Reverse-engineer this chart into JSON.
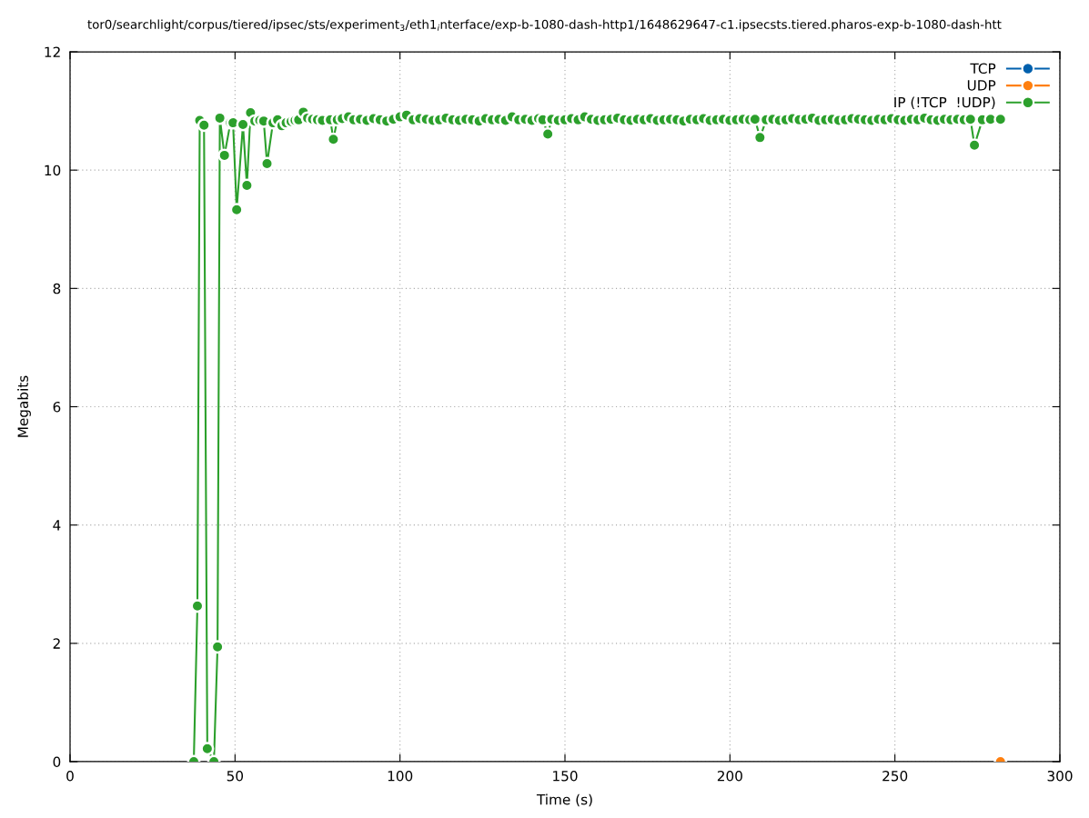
{
  "chart_data": {
    "type": "line",
    "title": "tor0/searchlight/corpus/tiered/ipsec/sts/experiment$_{3}$/eth1$_{i}$nterface/exp-b-1080-dash-http1/1648629647-c1.ipsecsts.tiered.pharos-exp-b-1080-dash-htt",
    "xlabel": "Time (s)",
    "ylabel": "Megabits",
    "xlim": [
      0,
      300
    ],
    "xticks": [
      0,
      50,
      100,
      150,
      200,
      250,
      300
    ],
    "ylim": [
      0,
      12
    ],
    "yticks": [
      0,
      2,
      4,
      6,
      8,
      10,
      12
    ],
    "grid": true,
    "legend": "top right",
    "marker": "circle",
    "line_style": "solid",
    "series": [
      {
        "name": "TCP",
        "color": "#0060ad"
      },
      {
        "name": "UDP",
        "color": "#ff7f0e",
        "x": [
          282
        ],
        "values": [
          0
        ]
      },
      {
        "name": "IP (!TCP  !UDP)",
        "color": "#2ca02c",
        "x": [
          37.5,
          38.6,
          39.3,
          40.6,
          41.6,
          43.6,
          44.7,
          45.4,
          46.8,
          48.6,
          49.4,
          50.5,
          52.4,
          53.6,
          54.7,
          56,
          57.5,
          58.7,
          59.7,
          61.5,
          62.9,
          64.2,
          65.5,
          67,
          68.2,
          69.3,
          70.7,
          72,
          73.5,
          75,
          76.5,
          78.9,
          79.8,
          81,
          82.5,
          84.4,
          86,
          88,
          90,
          92,
          94,
          96,
          98,
          100,
          102,
          104,
          106,
          108,
          110,
          112,
          114,
          116,
          118,
          120,
          122,
          124,
          126,
          128,
          130,
          132,
          134,
          136,
          138,
          140,
          142,
          143.3,
          144.8,
          146,
          148,
          150,
          152,
          154,
          156,
          158,
          160,
          162,
          164,
          166,
          168,
          170,
          172,
          174,
          176,
          178,
          180,
          182,
          184,
          186,
          188,
          190,
          192,
          194,
          196,
          198,
          200,
          202,
          204,
          206,
          207.6,
          209.1,
          211,
          213,
          215,
          217,
          219,
          221,
          223,
          225,
          227,
          229,
          231,
          233,
          235,
          237,
          239,
          241,
          243,
          245,
          247,
          249,
          251,
          253,
          255,
          257,
          259,
          261,
          263,
          265,
          267,
          269,
          271,
          272.9,
          274.1,
          276.5,
          279,
          282
        ],
        "values": [
          0,
          2.63,
          10.84,
          10.76,
          0.22,
          0,
          1.94,
          10.88,
          10.25,
          10.8,
          10.8,
          9.33,
          10.77,
          9.74,
          10.97,
          10.83,
          10.84,
          10.83,
          10.11,
          10.8,
          10.85,
          10.75,
          10.8,
          10.82,
          10.84,
          10.85,
          10.98,
          10.88,
          10.86,
          10.85,
          10.84,
          10.85,
          10.52,
          10.85,
          10.87,
          10.9,
          10.85,
          10.86,
          10.84,
          10.87,
          10.85,
          10.83,
          10.86,
          10.9,
          10.93,
          10.85,
          10.87,
          10.86,
          10.84,
          10.85,
          10.88,
          10.85,
          10.84,
          10.86,
          10.85,
          10.83,
          10.87,
          10.85,
          10.86,
          10.84,
          10.9,
          10.85,
          10.86,
          10.84,
          10.87,
          10.85,
          10.61,
          10.86,
          10.84,
          10.85,
          10.87,
          10.85,
          10.9,
          10.86,
          10.84,
          10.85,
          10.86,
          10.88,
          10.85,
          10.84,
          10.86,
          10.85,
          10.87,
          10.84,
          10.85,
          10.86,
          10.85,
          10.83,
          10.86,
          10.85,
          10.87,
          10.84,
          10.85,
          10.86,
          10.84,
          10.85,
          10.86,
          10.85,
          10.86,
          10.55,
          10.85,
          10.86,
          10.84,
          10.85,
          10.87,
          10.85,
          10.86,
          10.88,
          10.84,
          10.85,
          10.86,
          10.84,
          10.85,
          10.87,
          10.86,
          10.85,
          10.84,
          10.86,
          10.85,
          10.87,
          10.85,
          10.84,
          10.86,
          10.85,
          10.88,
          10.85,
          10.84,
          10.86,
          10.85,
          10.86,
          10.85,
          10.86,
          10.42,
          10.85,
          10.86,
          10.86
        ]
      }
    ]
  }
}
